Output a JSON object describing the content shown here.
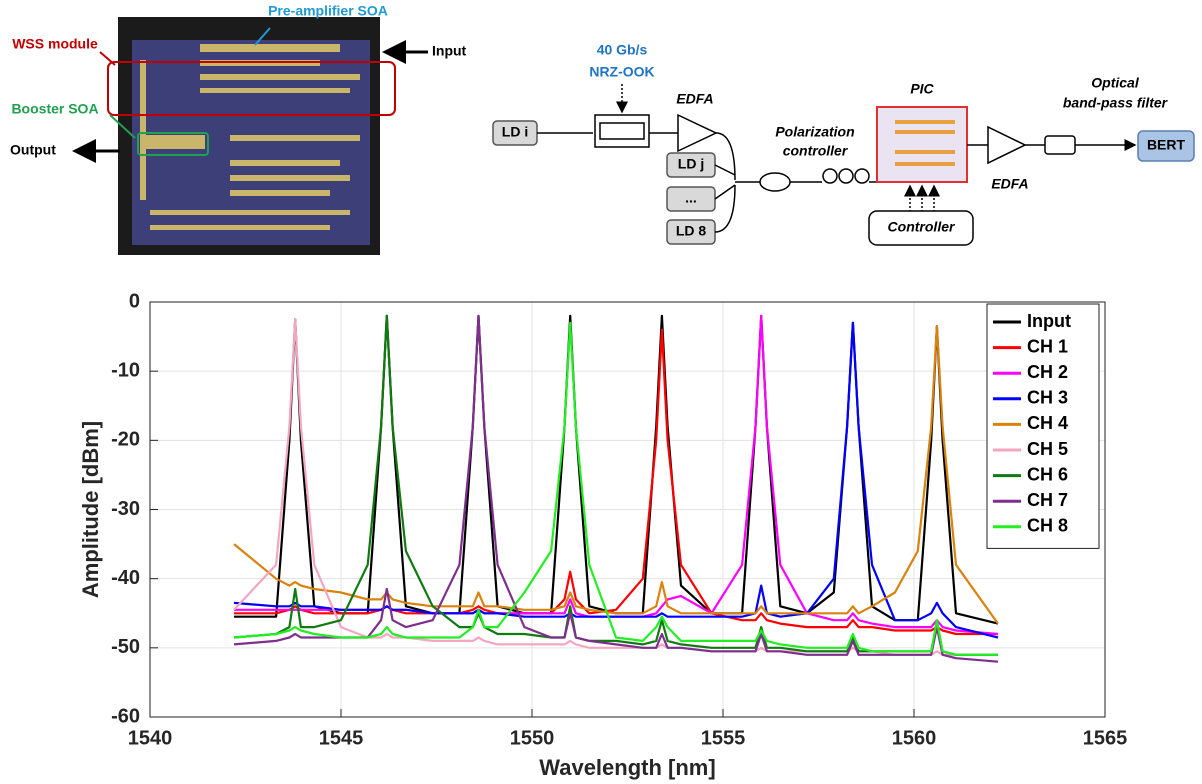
{
  "figure": {
    "photo": {
      "preamp": "Pre-amplifier SOA",
      "wss": "WSS module",
      "booster": "Booster SOA",
      "input": "Input",
      "output": "Output"
    },
    "diagram": {
      "rate": "40 Gb/s",
      "format": "NRZ-OOK",
      "edfa1": "EDFA",
      "ld_i": "LD i",
      "ld_j": "LD j",
      "ld_dots": "...",
      "ld_8": "LD 8",
      "pol1": "Polarization",
      "pol2": "controller",
      "pic": "PIC",
      "obpf1": "Optical",
      "obpf2": "band-pass filter",
      "controller": "Controller",
      "edfa2": "EDFA",
      "bert": "BERT"
    }
  },
  "chart_data": {
    "type": "line",
    "xlabel": "Wavelength [nm]",
    "ylabel": "Amplitude [dBm]",
    "xlim": [
      1540,
      1565
    ],
    "xticks": [
      1540,
      1545,
      1550,
      1555,
      1560,
      1565
    ],
    "ylim": [
      -60,
      0
    ],
    "yticks": [
      0,
      -10,
      -20,
      -30,
      -40,
      -50,
      -60
    ],
    "grid": true,
    "legend": "northeast",
    "x": [
      1542.2,
      1543.3,
      1543.65,
      1543.8,
      1543.95,
      1544.3,
      1545.0,
      1545.7,
      1546.05,
      1546.2,
      1546.35,
      1546.7,
      1547.4,
      1548.1,
      1548.45,
      1548.6,
      1548.75,
      1549.1,
      1549.8,
      1550.5,
      1550.85,
      1551.0,
      1551.15,
      1551.5,
      1552.2,
      1552.9,
      1553.25,
      1553.4,
      1553.55,
      1553.9,
      1554.7,
      1555.5,
      1555.85,
      1556.0,
      1556.15,
      1556.5,
      1557.2,
      1557.9,
      1558.25,
      1558.4,
      1558.55,
      1558.9,
      1559.5,
      1560.1,
      1560.45,
      1560.6,
      1560.75,
      1561.1,
      1562.2
    ],
    "series": [
      {
        "name": "Input",
        "color": "#000000",
        "values": [
          -45.5,
          -45.5,
          -20,
          -2.5,
          -20,
          -44,
          -45,
          -45,
          -18,
          -2,
          -18,
          -44,
          -45,
          -45,
          -18,
          -2,
          -18,
          -44,
          -45,
          -45,
          -18,
          -2,
          -18,
          -44,
          -45,
          -45,
          -18,
          -2,
          -18,
          -41,
          -45,
          -45,
          -18,
          -2,
          -18,
          -44,
          -45,
          -42,
          -18,
          -3,
          -18,
          -44,
          -46,
          -46,
          -20,
          -3.5,
          -20,
          -45,
          -46.5
        ]
      },
      {
        "name": "CH 1",
        "color": "#ff0000",
        "values": [
          -45,
          -45,
          -44.5,
          -44,
          -44.5,
          -45,
          -45,
          -45,
          -44.5,
          -44,
          -44.5,
          -45,
          -45,
          -45,
          -44.5,
          -44,
          -44.5,
          -45,
          -45,
          -45,
          -43,
          -39,
          -43,
          -45,
          -44.5,
          -40,
          -20,
          -4,
          -20,
          -38,
          -45,
          -46,
          -46,
          -45,
          -46,
          -46.5,
          -47,
          -47,
          -47,
          -46,
          -47,
          -47,
          -47.5,
          -47.5,
          -47.5,
          -47,
          -47.5,
          -48,
          -48
        ]
      },
      {
        "name": "CH 2",
        "color": "#ff00ff",
        "values": [
          -44.5,
          -44.5,
          -44.5,
          -44.5,
          -44.5,
          -44.5,
          -44.5,
          -44.5,
          -44.5,
          -44,
          -44.5,
          -44.5,
          -45,
          -45,
          -45,
          -44.5,
          -45,
          -45,
          -45,
          -45,
          -45,
          -43,
          -45,
          -45.5,
          -45.5,
          -45.5,
          -45,
          -44,
          -43,
          -42.5,
          -45,
          -38,
          -18,
          -2,
          -18,
          -38,
          -45,
          -46,
          -46,
          -45,
          -46,
          -46.5,
          -47,
          -47,
          -47,
          -46,
          -47,
          -47.5,
          -48
        ]
      },
      {
        "name": "CH 3",
        "color": "#0000ff",
        "values": [
          -43.5,
          -44,
          -44,
          -43.5,
          -44,
          -44,
          -44.5,
          -44.5,
          -44.5,
          -44,
          -44.5,
          -44.5,
          -45,
          -45,
          -45,
          -44.5,
          -45,
          -45,
          -45.5,
          -45.5,
          -45.5,
          -45,
          -45.5,
          -45.5,
          -45.5,
          -45.5,
          -45.5,
          -45,
          -45.5,
          -45.5,
          -45.5,
          -45.5,
          -45,
          -41,
          -45,
          -45.5,
          -45,
          -40,
          -18,
          -3,
          -18,
          -38,
          -46,
          -46,
          -45,
          -43.5,
          -45,
          -47,
          -48.5
        ]
      },
      {
        "name": "CH 4",
        "color": "#d9820e",
        "values": [
          -35,
          -40,
          -41,
          -40.5,
          -41,
          -41.5,
          -42,
          -43,
          -43,
          -42,
          -43,
          -43.5,
          -44,
          -44,
          -44,
          -42,
          -44,
          -44,
          -44.5,
          -44.5,
          -44,
          -42,
          -44,
          -44.5,
          -45,
          -45,
          -44,
          -40.5,
          -44,
          -45,
          -45,
          -45,
          -45,
          -44,
          -45,
          -45,
          -45,
          -45,
          -45,
          -44,
          -45,
          -44,
          -42,
          -36,
          -18,
          -3.5,
          -18,
          -38,
          -46.5
        ]
      },
      {
        "name": "CH 5",
        "color": "#f4a6c0",
        "values": [
          -44.5,
          -38,
          -18,
          -2.5,
          -18,
          -38,
          -47,
          -48.5,
          -48.5,
          -48,
          -48.5,
          -48.5,
          -49,
          -49,
          -49,
          -48.5,
          -49,
          -49.5,
          -49.5,
          -49.5,
          -49.5,
          -49,
          -49.5,
          -50,
          -50,
          -50,
          -50,
          -49.5,
          -50,
          -50,
          -50.5,
          -50.5,
          -50.5,
          -50,
          -50.5,
          -50.5,
          -50.5,
          -50.5,
          -50.5,
          -50,
          -50.5,
          -50.5,
          -51,
          -51,
          -51,
          -50.5,
          -51,
          -51,
          -51
        ]
      },
      {
        "name": "CH 6",
        "color": "#0f7a0f",
        "values": [
          -48.5,
          -48,
          -47,
          -41.5,
          -47,
          -47,
          -46,
          -38,
          -18,
          -2,
          -18,
          -36,
          -44,
          -47,
          -47,
          -45,
          -47,
          -48,
          -48,
          -48.5,
          -48.5,
          -44,
          -48.5,
          -49,
          -49,
          -49.5,
          -49,
          -46,
          -49,
          -49.5,
          -50,
          -50,
          -50,
          -47,
          -50,
          -50,
          -50.5,
          -50.5,
          -50.5,
          -48.5,
          -50.5,
          -50.5,
          -50.5,
          -50.5,
          -50.5,
          -47,
          -50.5,
          -51,
          -51
        ]
      },
      {
        "name": "CH 7",
        "color": "#7e2f8e",
        "values": [
          -49.5,
          -49,
          -48.5,
          -48,
          -48.5,
          -48.5,
          -48.5,
          -48.5,
          -46,
          -41.5,
          -46,
          -47,
          -46,
          -38,
          -18,
          -2,
          -18,
          -38,
          -47,
          -48.5,
          -48.5,
          -45,
          -48.5,
          -49,
          -49.5,
          -50,
          -50,
          -48,
          -50,
          -50,
          -50.5,
          -50.5,
          -50.5,
          -48,
          -50.5,
          -50.5,
          -51,
          -51,
          -51,
          -49,
          -51,
          -51,
          -51,
          -51,
          -51,
          -47,
          -51,
          -51.5,
          -52
        ]
      },
      {
        "name": "CH 8",
        "color": "#22ee22",
        "values": [
          -48.5,
          -48,
          -47.5,
          -47,
          -47.5,
          -48,
          -48.5,
          -48.5,
          -48,
          -47,
          -48,
          -48.5,
          -48.5,
          -48.5,
          -47,
          -44.5,
          -47,
          -47,
          -42,
          -36,
          -18,
          -3,
          -18,
          -38,
          -48.5,
          -49,
          -47,
          -45.5,
          -47,
          -49,
          -49,
          -49,
          -49,
          -47.5,
          -49,
          -49.5,
          -50,
          -50,
          -50,
          -48,
          -50,
          -50.5,
          -50.5,
          -50.5,
          -50.5,
          -46,
          -50.5,
          -51,
          -51
        ]
      }
    ]
  }
}
